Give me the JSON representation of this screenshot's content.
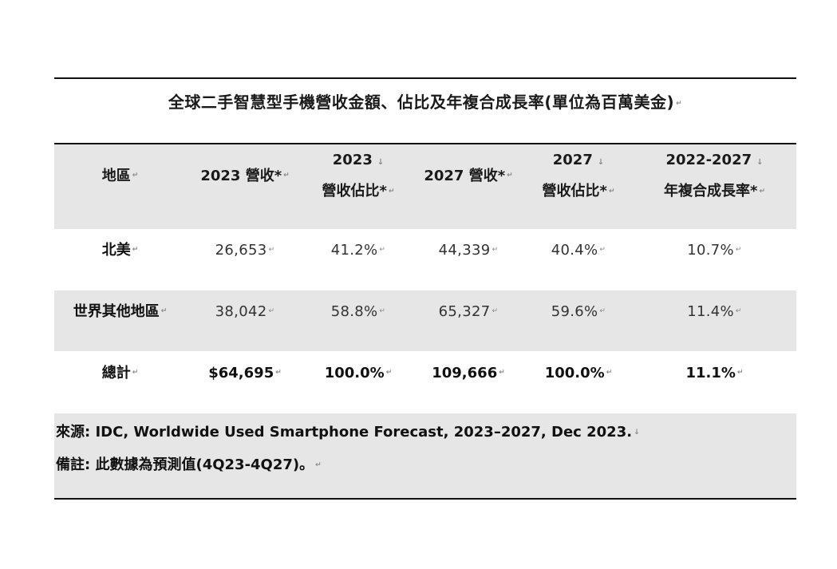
{
  "title": "全球二手智慧型手機營收金額、佔比及年複合成長率(單位為百萬美金)",
  "table": {
    "headers": [
      {
        "line1": "地區",
        "line2": ""
      },
      {
        "line1": "2023 營收*",
        "line2": ""
      },
      {
        "line1": "2023",
        "line2": "營收佔比*"
      },
      {
        "line1": "2027 營收*",
        "line2": ""
      },
      {
        "line1": "2027",
        "line2": "營收佔比*"
      },
      {
        "line1": "2022-2027",
        "line2": "年複合成長率*"
      }
    ],
    "rows": [
      {
        "region": "北美",
        "rev2023": "26,653",
        "share2023": "41.2%",
        "rev2027": "44,339",
        "share2027": "40.4%",
        "cagr": "10.7%"
      },
      {
        "region": "世界其他地區",
        "rev2023": "38,042",
        "share2023": "58.8%",
        "rev2027": "65,327",
        "share2027": "59.6%",
        "cagr": "11.4%"
      },
      {
        "region": "總計",
        "rev2023": "$64,695",
        "share2023": "100.0%",
        "rev2027": "109,666",
        "share2027": "100.0%",
        "cagr": "11.1%"
      }
    ]
  },
  "source": "來源: IDC, Worldwide Used Smartphone Forecast, 2023–2027, Dec 2023.",
  "note": "備註: 此數據為預測值(4Q23-4Q27)。"
}
